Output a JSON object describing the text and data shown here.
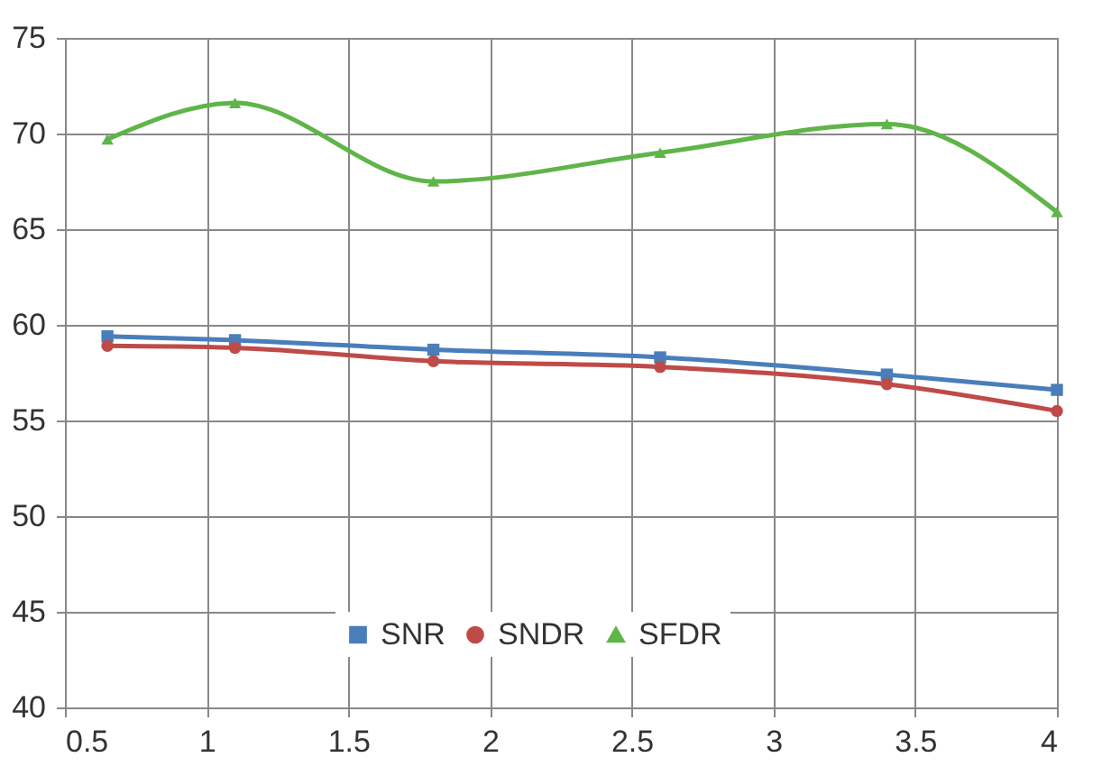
{
  "chart_data": {
    "type": "line",
    "x": [
      0.65,
      1.1,
      1.8,
      2.6,
      3.4,
      4.0
    ],
    "series": [
      {
        "name": "SNR",
        "color": "#4a7ebb",
        "marker": "square",
        "values": [
          59.4,
          59.2,
          58.7,
          58.3,
          57.4,
          56.6
        ]
      },
      {
        "name": "SNDR",
        "color": "#be4b48",
        "marker": "circle",
        "values": [
          58.9,
          58.8,
          58.1,
          57.8,
          56.9,
          55.5
        ]
      },
      {
        "name": "SFDR",
        "color": "#5fb548",
        "marker": "triangle",
        "values": [
          69.7,
          71.6,
          67.5,
          69.0,
          70.5,
          65.9
        ]
      }
    ],
    "xlim": [
      0.5,
      4
    ],
    "xticks": [
      0.5,
      1,
      1.5,
      2,
      2.5,
      3,
      3.5,
      4
    ],
    "ylim": [
      40,
      75
    ],
    "yticks": [
      40,
      45,
      50,
      55,
      60,
      65,
      70,
      75
    ],
    "grid": true,
    "legend": "bottom",
    "line_style": "solid"
  }
}
